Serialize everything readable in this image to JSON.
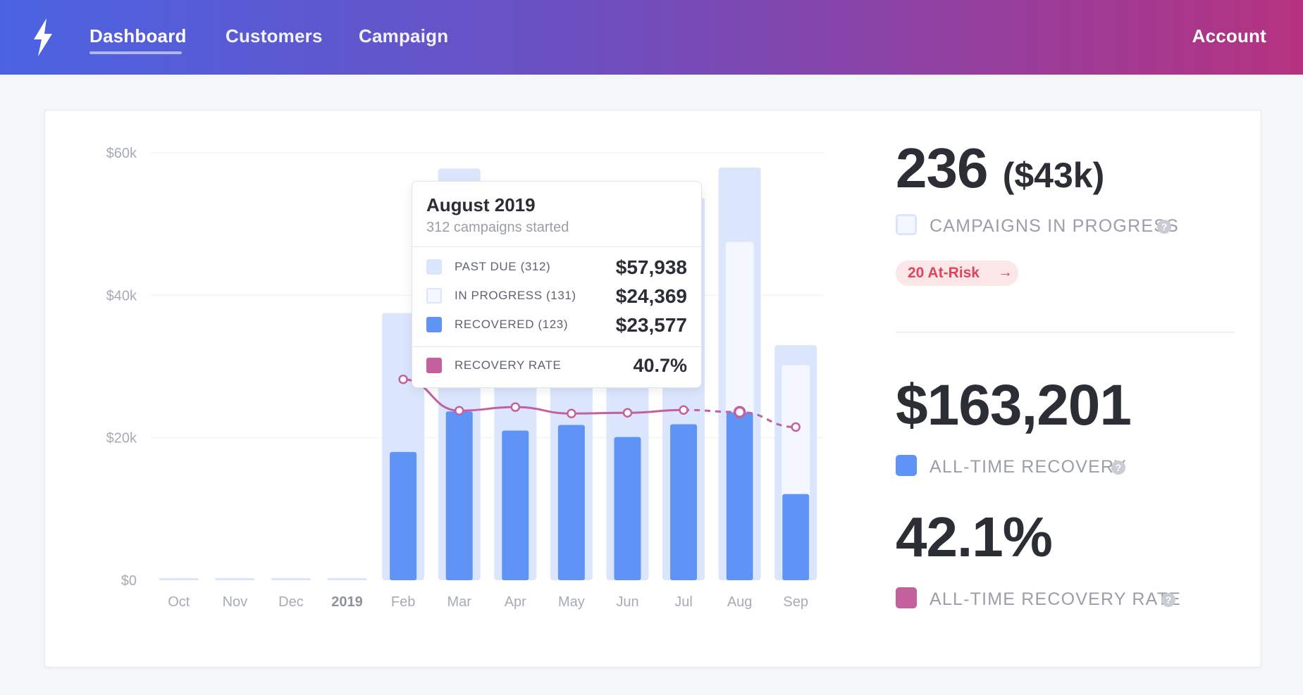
{
  "nav": {
    "items": [
      {
        "label": "Dashboard",
        "active": true
      },
      {
        "label": "Customers",
        "active": false
      },
      {
        "label": "Campaign",
        "active": false
      }
    ],
    "account_label": "Account",
    "logo_icon": "lightning-bolt-icon"
  },
  "colors": {
    "past_due": "#dbe6fd",
    "in_progress": "#f4f7ff",
    "recovered": "#5f94f6",
    "recovery_rate": "#c4609e",
    "at_risk": "#e0445a"
  },
  "chart_data": {
    "type": "bar",
    "categories": [
      "Oct",
      "Nov",
      "Dec",
      "2019",
      "Feb",
      "Mar",
      "Apr",
      "May",
      "Jun",
      "Jul",
      "Aug",
      "Sep"
    ],
    "y_ticks": [
      "$0",
      "$20k",
      "$40k",
      "$60k"
    ],
    "ylim": [
      0,
      60000
    ],
    "grid": true,
    "series": [
      {
        "name": "PAST DUE",
        "values": [
          300,
          300,
          300,
          300,
          37500,
          57800,
          55000,
          54500,
          55500,
          53700,
          57938,
          33000
        ]
      },
      {
        "name": "IN PROGRESS",
        "values": [
          0,
          0,
          0,
          0,
          0,
          0,
          0,
          0,
          0,
          0,
          47500,
          30200
        ]
      },
      {
        "name": "RECOVERED",
        "values": [
          0,
          0,
          0,
          0,
          18000,
          23700,
          21000,
          21800,
          20100,
          21900,
          23577,
          12100
        ]
      },
      {
        "name": "RECOVERY RATE",
        "axis": "line",
        "values": [
          null,
          null,
          null,
          null,
          28200,
          23800,
          24300,
          23400,
          23500,
          23900,
          23600,
          21500
        ],
        "dashed_from_index": 9
      }
    ],
    "highlight_index": 10
  },
  "tooltip": {
    "title": "August 2019",
    "subtitle": "312 campaigns started",
    "rows": [
      {
        "label": "PAST DUE (312)",
        "value": "$57,938"
      },
      {
        "label": "IN PROGRESS (131)",
        "value": "$24,369"
      },
      {
        "label": "RECOVERED (123)",
        "value": "$23,577"
      }
    ],
    "rate_label": "RECOVERY RATE",
    "rate_value": "40.7%"
  },
  "stats": {
    "campaigns_count": "236",
    "campaigns_amount": "($43k)",
    "campaigns_label": "CAMPAIGNS IN PROGRESS",
    "at_risk_label": "20 At-Risk",
    "at_risk_arrow": "→",
    "recovery_amount": "$163,201",
    "recovery_label": "ALL-TIME RECOVERY",
    "recovery_rate": "42.1%",
    "recovery_rate_label": "ALL-TIME RECOVERY RATE",
    "help_glyph": "?"
  }
}
